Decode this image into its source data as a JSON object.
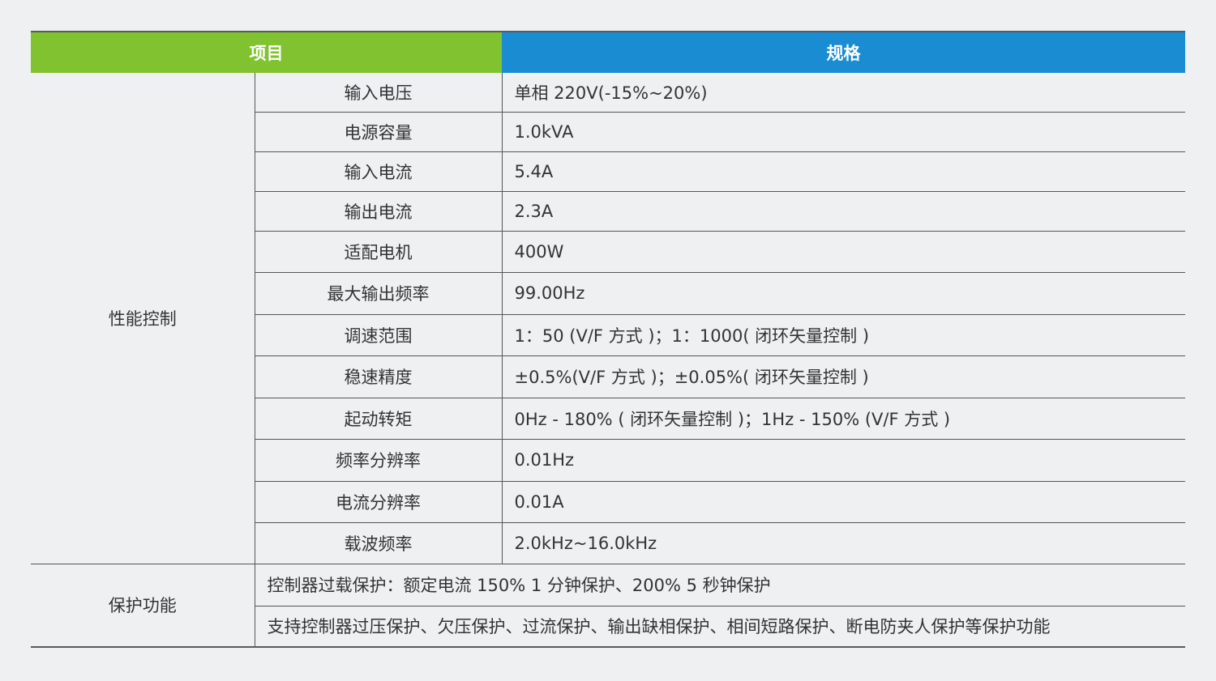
{
  "header": {
    "item": "项目",
    "spec": "规格"
  },
  "performance": {
    "group_label": "性能控制",
    "rows": [
      {
        "name": "输入电压",
        "value": "单相 220V(-15%~20%)"
      },
      {
        "name": "电源容量",
        "value": "1.0kVA"
      },
      {
        "name": "输入电流",
        "value": "5.4A"
      },
      {
        "name": "输出电流",
        "value": "2.3A"
      },
      {
        "name": "适配电机",
        "value": "400W"
      },
      {
        "name": "最大输出频率",
        "value": "99.00Hz"
      },
      {
        "name": "调速范围",
        "value": "1：50 (V/F 方式 )；1：1000( 闭环矢量控制 )"
      },
      {
        "name": "稳速精度",
        "value": "±0.5%(V/F 方式 )；±0.05%( 闭环矢量控制 )"
      },
      {
        "name": "起动转矩",
        "value": "0Hz - 180% ( 闭环矢量控制 )；1Hz - 150% (V/F 方式 )"
      },
      {
        "name": "频率分辨率",
        "value": "0.01Hz"
      },
      {
        "name": "电流分辨率",
        "value": "0.01A"
      },
      {
        "name": "载波频率",
        "value": "2.0kHz~16.0kHz"
      }
    ]
  },
  "protection": {
    "group_label": "保护功能",
    "rows": [
      "控制器过载保护：额定电流 150% 1 分钟保护、200% 5 秒钟保护",
      "支持控制器过压保护、欠压保护、过流保护、输出缺相保护、相间短路保护、断电防夹人保护等保护功能"
    ]
  }
}
